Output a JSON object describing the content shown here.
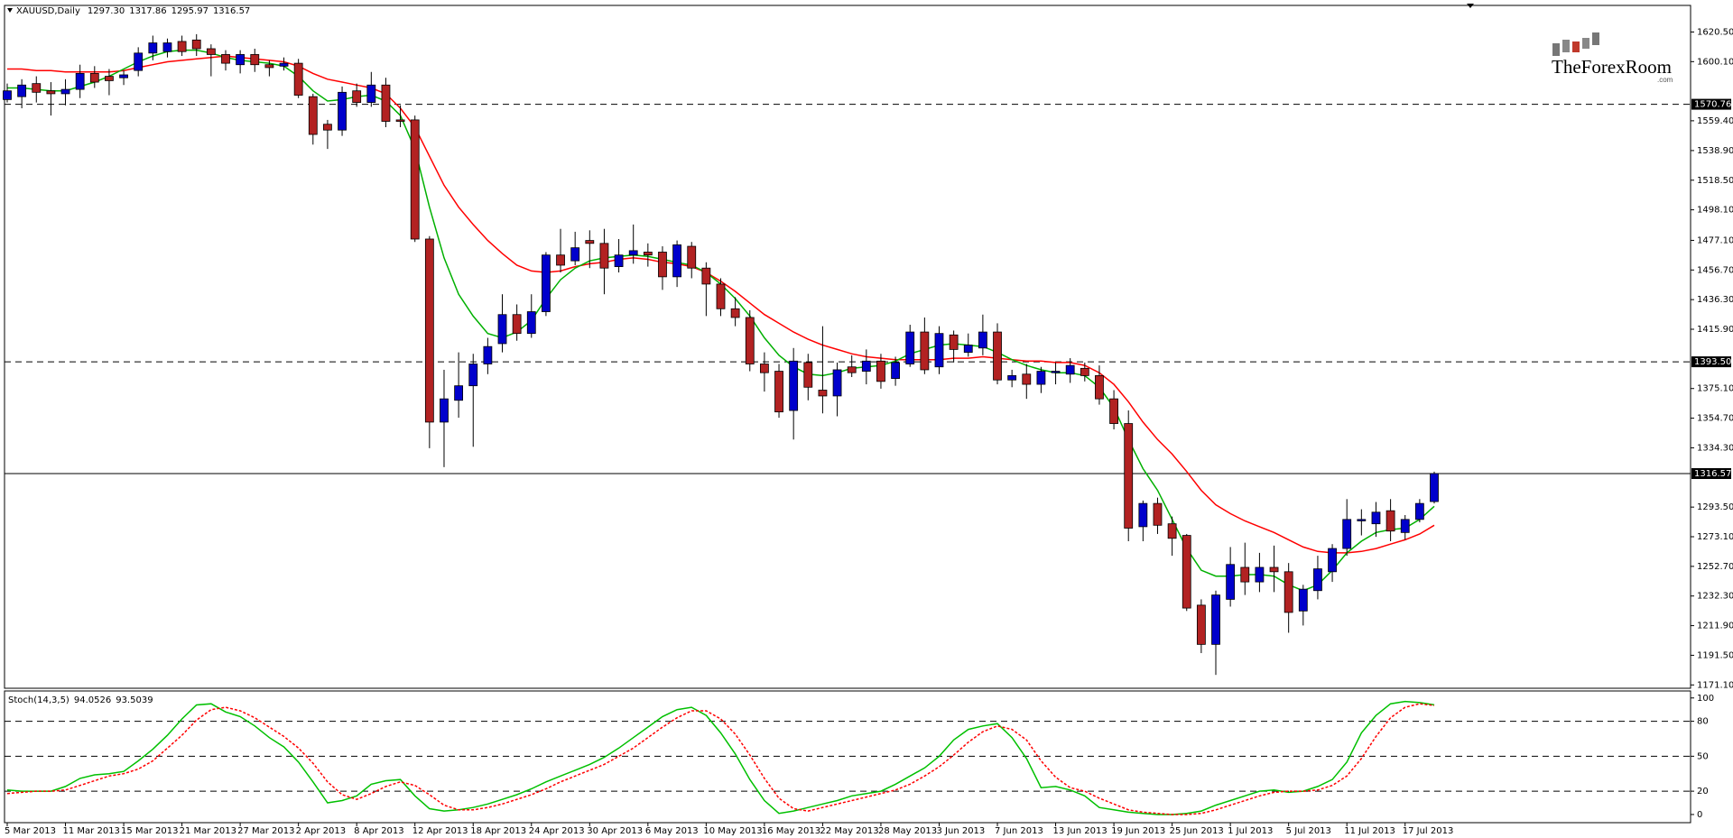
{
  "chart_data": [
    {
      "type": "candlestick",
      "title": "XAUUSD,Daily",
      "ohlc_labels": [
        "1297.30",
        "1317.86",
        "1295.97",
        "1316.57"
      ],
      "categories": [
        "5 Mar 2013",
        null,
        null,
        null,
        "11 Mar 2013",
        null,
        null,
        null,
        "15 Mar 2013",
        null,
        null,
        null,
        "21 Mar 2013",
        null,
        null,
        null,
        "27 Mar 2013",
        null,
        null,
        null,
        "2 Apr 2013",
        null,
        null,
        null,
        "8 Apr 2013",
        null,
        null,
        null,
        "12 Apr 2013",
        null,
        null,
        null,
        "18 Apr 2013",
        null,
        null,
        null,
        "24 Apr 2013",
        null,
        null,
        null,
        "30 Apr 2013",
        null,
        null,
        null,
        "6 May 2013",
        null,
        null,
        null,
        "10 May 2013",
        null,
        null,
        null,
        "16 May 2013",
        null,
        null,
        null,
        "22 May 2013",
        null,
        null,
        null,
        "28 May 2013",
        null,
        null,
        null,
        "3 Jun 2013",
        null,
        null,
        null,
        "7 Jun 2013",
        null,
        null,
        null,
        "13 Jun 2013",
        null,
        null,
        null,
        "19 Jun 2013",
        null,
        null,
        null,
        "25 Jun 2013",
        null,
        null,
        null,
        "1 Jul 2013",
        null,
        null,
        null,
        "5 Jul 2013",
        null,
        null,
        null,
        "11 Jul 2013",
        null,
        null,
        null,
        "17 Jul 2013",
        null,
        null
      ],
      "open": [
        1574,
        1576,
        1585,
        1580,
        1578,
        1581,
        1592,
        1590,
        1589,
        1594,
        1606,
        1607,
        1614,
        1615,
        1609,
        1605,
        1598,
        1605,
        1598,
        1597,
        1599,
        1576,
        1557,
        1553,
        1580,
        1572,
        1584,
        1560,
        1560,
        1478,
        1352,
        1367,
        1377,
        1392,
        1406,
        1426,
        1413,
        1428,
        1467,
        1463,
        1477,
        1475,
        1459,
        1467,
        1469,
        1469,
        1452,
        1473,
        1458,
        1447,
        1430,
        1424,
        1392,
        1387,
        1360,
        1393,
        1374,
        1370,
        1390,
        1387,
        1394,
        1382,
        1392,
        1414,
        1390,
        1412,
        1400,
        1403,
        1414,
        1381,
        1385,
        1378,
        1386,
        1385,
        1389,
        1384,
        1368,
        1351,
        1280,
        1296,
        1282,
        1274,
        1226,
        1199,
        1230,
        1252,
        1242,
        1252,
        1249,
        1222,
        1236,
        1249,
        1265,
        1284,
        1282,
        1291,
        1276,
        1285,
        1297.3
      ],
      "high": [
        1585,
        1588,
        1590,
        1586,
        1588,
        1598,
        1597,
        1595,
        1594,
        1610,
        1618,
        1616,
        1618,
        1619,
        1612,
        1608,
        1608,
        1609,
        1601,
        1603,
        1602,
        1578,
        1560,
        1583,
        1585,
        1593,
        1589,
        1570,
        1563,
        1480,
        1388,
        1400,
        1399,
        1410,
        1440,
        1433,
        1440,
        1469,
        1485,
        1483,
        1484,
        1485,
        1478,
        1488,
        1475,
        1473,
        1477,
        1476,
        1462,
        1451,
        1438,
        1429,
        1400,
        1392,
        1403,
        1399,
        1418,
        1393,
        1398,
        1402,
        1399,
        1397,
        1419,
        1424,
        1418,
        1415,
        1413,
        1426,
        1420,
        1388,
        1392,
        1390,
        1393,
        1396,
        1393,
        1391,
        1374,
        1360,
        1298,
        1300,
        1287,
        1275,
        1230,
        1236,
        1266,
        1269,
        1262,
        1267,
        1255,
        1240,
        1260,
        1268,
        1299,
        1292,
        1297,
        1299,
        1288,
        1299,
        1317.86
      ],
      "low": [
        1572,
        1568,
        1572,
        1563,
        1570,
        1575,
        1582,
        1577,
        1584,
        1590,
        1601,
        1603,
        1604,
        1604,
        1590,
        1594,
        1592,
        1593,
        1590,
        1594,
        1575,
        1543,
        1540,
        1549,
        1569,
        1569,
        1555,
        1555,
        1476,
        1334,
        1321,
        1355,
        1335,
        1385,
        1400,
        1408,
        1410,
        1425,
        1455,
        1460,
        1458,
        1440,
        1455,
        1461,
        1459,
        1443,
        1445,
        1451,
        1425,
        1425,
        1418,
        1387,
        1373,
        1355,
        1340,
        1367,
        1358,
        1356,
        1383,
        1378,
        1375,
        1377,
        1390,
        1385,
        1385,
        1393,
        1397,
        1398,
        1378,
        1376,
        1368,
        1372,
        1378,
        1379,
        1380,
        1364,
        1347,
        1270,
        1270,
        1275,
        1260,
        1222,
        1193,
        1178,
        1225,
        1233,
        1235,
        1235,
        1207,
        1212,
        1230,
        1242,
        1260,
        1274,
        1273,
        1270,
        1271,
        1283,
        1295.97
      ],
      "close": [
        1580,
        1584,
        1579,
        1578,
        1581,
        1592,
        1586,
        1587,
        1591,
        1606,
        1613,
        1613,
        1607,
        1609,
        1605,
        1599,
        1605,
        1598,
        1596,
        1599,
        1577,
        1550,
        1553,
        1579,
        1572,
        1584,
        1559,
        1559,
        1478,
        1352,
        1368,
        1377,
        1392,
        1404,
        1426,
        1413,
        1428,
        1467,
        1460,
        1472,
        1475,
        1458,
        1467,
        1470,
        1467,
        1452,
        1474,
        1458,
        1447,
        1430,
        1424,
        1392,
        1386,
        1359,
        1394,
        1376,
        1370,
        1388,
        1386,
        1394,
        1380,
        1393,
        1414,
        1388,
        1413,
        1402,
        1405,
        1414,
        1381,
        1384,
        1378,
        1387,
        1387,
        1391,
        1384,
        1368,
        1351,
        1279,
        1296,
        1281,
        1272,
        1224,
        1199,
        1233,
        1254,
        1242,
        1252,
        1249,
        1221,
        1237,
        1251,
        1265,
        1285,
        1285,
        1290,
        1277,
        1285,
        1296,
        1316.57
      ],
      "up_color": "#0000cc",
      "down_color": "#b22222",
      "series": [
        {
          "color": "#ff0000",
          "values": [
            1595,
            1595,
            1594,
            1594,
            1593,
            1593,
            1593,
            1593,
            1594,
            1596,
            1598,
            1600,
            1601,
            1602,
            1603,
            1604,
            1603,
            1602,
            1601,
            1600,
            1597,
            1592,
            1588,
            1586,
            1584,
            1582,
            1578,
            1568,
            1555,
            1535,
            1515,
            1500,
            1488,
            1477,
            1468,
            1460,
            1456,
            1455,
            1456,
            1459,
            1461,
            1462,
            1464,
            1465,
            1464,
            1462,
            1461,
            1459,
            1455,
            1449,
            1442,
            1434,
            1426,
            1420,
            1414,
            1409,
            1405,
            1402,
            1399,
            1397,
            1396,
            1395,
            1395,
            1395,
            1395,
            1396,
            1396,
            1397,
            1396,
            1395,
            1394,
            1394,
            1393,
            1393,
            1391,
            1386,
            1378,
            1366,
            1352,
            1340,
            1330,
            1318,
            1305,
            1295,
            1289,
            1284,
            1280,
            1276,
            1271,
            1266,
            1263,
            1262,
            1262,
            1263,
            1265,
            1268,
            1271,
            1275,
            1281
          ]
        },
        {
          "color": "#00b000",
          "values": [
            1582,
            1582,
            1581,
            1580,
            1580,
            1583,
            1586,
            1590,
            1595,
            1600,
            1604,
            1607,
            1608,
            1608,
            1606,
            1603,
            1601,
            1600,
            1599,
            1597,
            1590,
            1580,
            1573,
            1574,
            1576,
            1577,
            1573,
            1563,
            1540,
            1500,
            1465,
            1440,
            1425,
            1413,
            1410,
            1414,
            1422,
            1437,
            1450,
            1458,
            1463,
            1465,
            1466,
            1467,
            1466,
            1464,
            1462,
            1460,
            1455,
            1447,
            1437,
            1425,
            1410,
            1398,
            1390,
            1385,
            1384,
            1386,
            1389,
            1390,
            1391,
            1394,
            1399,
            1402,
            1405,
            1406,
            1405,
            1404,
            1400,
            1395,
            1391,
            1388,
            1386,
            1386,
            1384,
            1376,
            1362,
            1340,
            1320,
            1305,
            1285,
            1265,
            1250,
            1246,
            1246,
            1247,
            1247,
            1246,
            1240,
            1236,
            1240,
            1250,
            1262,
            1270,
            1276,
            1278,
            1279,
            1285,
            1294
          ]
        }
      ],
      "ylim": [
        1168.8,
        1638.8
      ],
      "yticks": [
        {
          "value": 1620.5,
          "label": "1620.50"
        },
        {
          "value": 1600.1,
          "label": "1600.10"
        },
        {
          "value": 1559.4,
          "label": "1559.40"
        },
        {
          "value": 1538.9,
          "label": "1538.90"
        },
        {
          "value": 1518.5,
          "label": "1518.50"
        },
        {
          "value": 1498.1,
          "label": "1498.10"
        },
        {
          "value": 1477.1,
          "label": "1477.10"
        },
        {
          "value": 1456.7,
          "label": "1456.70"
        },
        {
          "value": 1436.3,
          "label": "1436.30"
        },
        {
          "value": 1415.9,
          "label": "1415.90"
        },
        {
          "value": 1375.1,
          "label": "1375.10"
        },
        {
          "value": 1354.7,
          "label": "1354.70"
        },
        {
          "value": 1334.3,
          "label": "1334.30"
        },
        {
          "value": 1293.5,
          "label": "1293.50"
        },
        {
          "value": 1273.1,
          "label": "1273.10"
        },
        {
          "value": 1252.7,
          "label": "1252.70"
        },
        {
          "value": 1232.3,
          "label": "1232.30"
        },
        {
          "value": 1211.9,
          "label": "1211.90"
        },
        {
          "value": 1191.5,
          "label": "1191.50"
        },
        {
          "value": 1171.1,
          "label": "1171.10"
        }
      ],
      "levels": [
        {
          "value": 1570.76,
          "dashed": true,
          "boxed": true
        },
        {
          "value": 1393.5,
          "label": "1393.50",
          "dashed": true,
          "boxed": true
        },
        {
          "value": 1316.57,
          "dashed": false,
          "boxed": true
        }
      ],
      "grid": false
    },
    {
      "type": "line",
      "title": "Stoch(14,3,5)",
      "series": [
        {
          "color": "#00c000",
          "dashed": false,
          "values": [
            21,
            20,
            20,
            20,
            24,
            31,
            34,
            35,
            37,
            46,
            56,
            68,
            82,
            94,
            95,
            88,
            84,
            76,
            66,
            58,
            45,
            28,
            10,
            12,
            16,
            26,
            29,
            30,
            16,
            5,
            3,
            4,
            6,
            9,
            13,
            17,
            22,
            28,
            33,
            38,
            43,
            49,
            57,
            66,
            75,
            84,
            90,
            92,
            85,
            70,
            52,
            30,
            12,
            1,
            3,
            6,
            9,
            12,
            16,
            18,
            20,
            26,
            33,
            40,
            50,
            64,
            73,
            76,
            78,
            66,
            48,
            23,
            24,
            21,
            16,
            6,
            4,
            2,
            1,
            0,
            0,
            1,
            3,
            8,
            12,
            16,
            20,
            21,
            19,
            20,
            24,
            30,
            45,
            70,
            85,
            95,
            97,
            96,
            94.0526
          ]
        },
        {
          "color": "#ff0000",
          "dashed": true,
          "values": [
            18,
            19,
            20,
            20,
            21,
            25,
            29,
            33,
            35,
            39,
            46,
            57,
            68,
            81,
            90,
            92,
            89,
            83,
            75,
            67,
            57,
            44,
            28,
            17,
            13,
            18,
            24,
            28,
            25,
            17,
            8,
            4,
            4,
            6,
            9,
            13,
            17,
            22,
            28,
            33,
            38,
            43,
            50,
            57,
            66,
            75,
            83,
            89,
            89,
            82,
            69,
            51,
            31,
            14,
            5,
            3,
            6,
            9,
            12,
            15,
            18,
            21,
            26,
            33,
            41,
            51,
            62,
            71,
            76,
            73,
            64,
            46,
            32,
            23,
            20,
            14,
            9,
            4,
            2,
            1,
            0,
            0,
            1,
            4,
            8,
            12,
            16,
            19,
            20,
            20,
            21,
            25,
            33,
            48,
            67,
            83,
            92,
            95,
            93.5039
          ]
        }
      ],
      "ylim": [
        -7,
        106
      ],
      "yticks": [
        0,
        20,
        50,
        80,
        100
      ],
      "levels": [
        {
          "value": 20,
          "dashed": true,
          "boxed": false
        },
        {
          "value": 50,
          "dashed": true,
          "boxed": false
        },
        {
          "value": 80,
          "dashed": true,
          "boxed": false
        }
      ],
      "grid": false
    }
  ],
  "logo": {
    "name": "TheForexRoom",
    "domain": ".com"
  }
}
